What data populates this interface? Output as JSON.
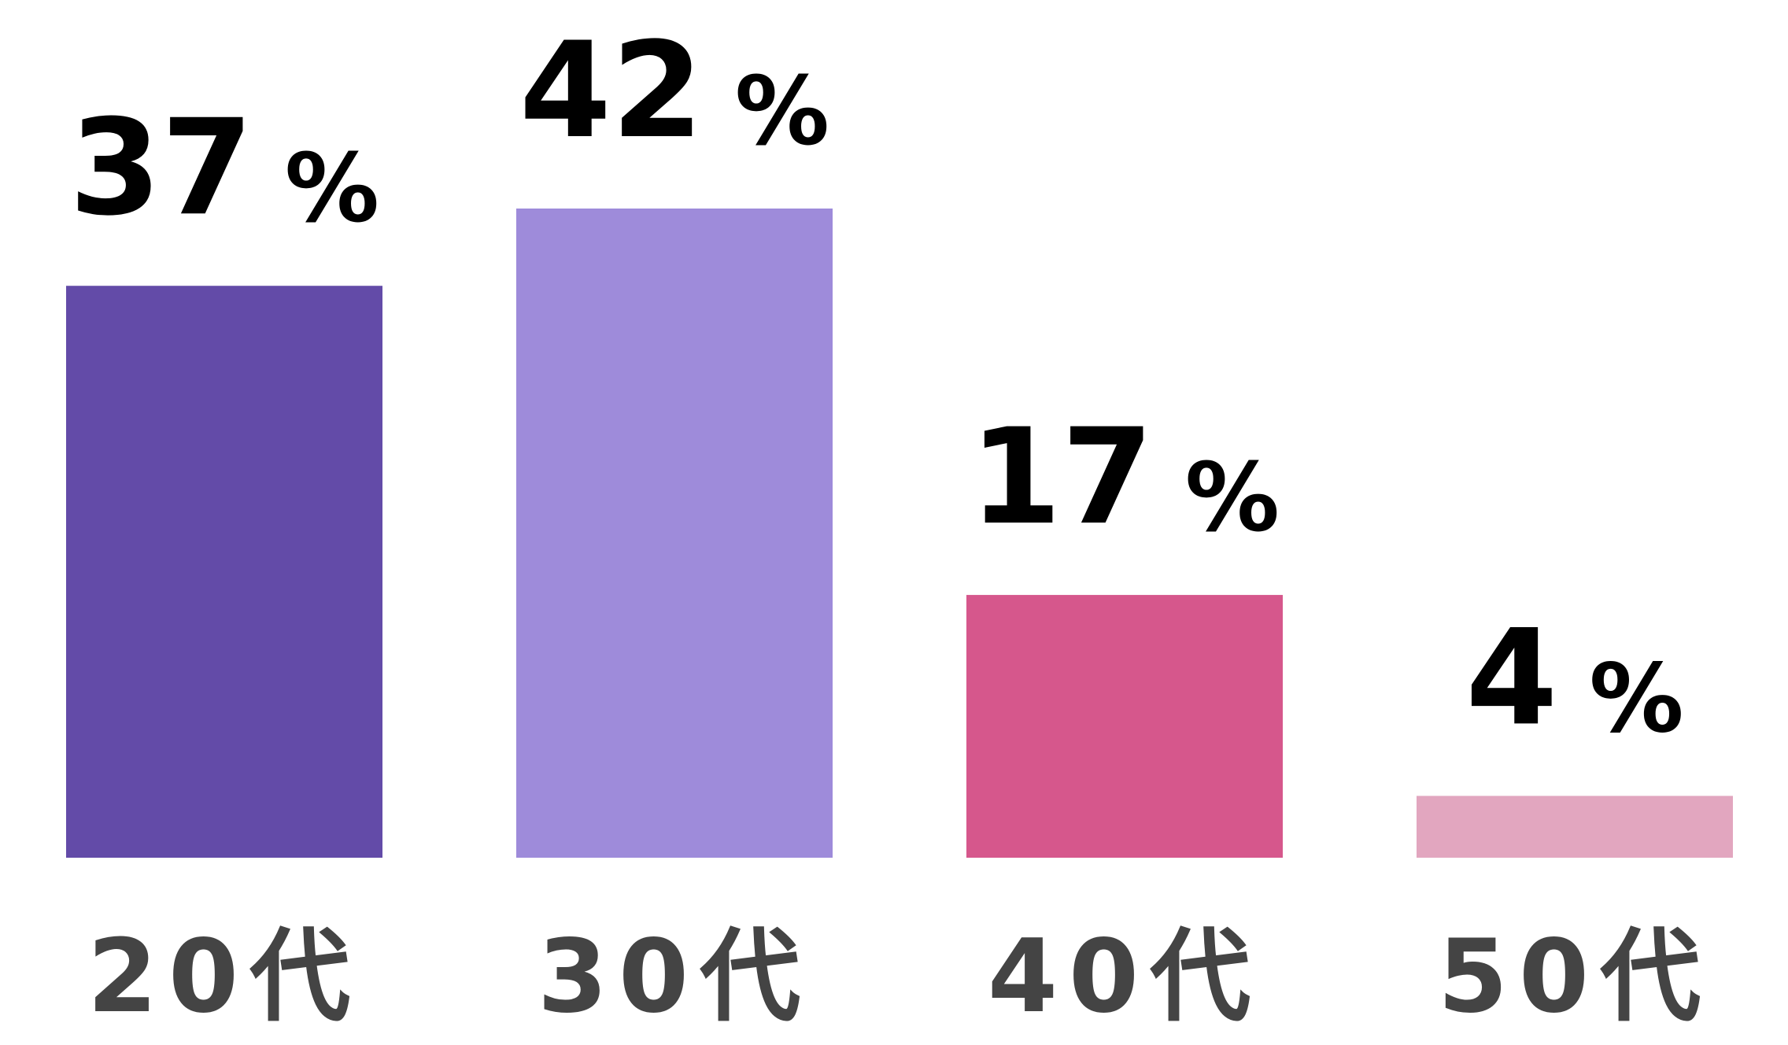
{
  "chart_data": {
    "type": "bar",
    "title": "",
    "xlabel": "",
    "ylabel": "",
    "ylim": [
      0,
      42
    ],
    "grid": false,
    "categories": [
      "20代",
      "30代",
      "40代",
      "50代"
    ],
    "values": [
      37,
      42,
      17,
      4
    ],
    "value_labels": [
      "37",
      "42",
      "17",
      "4"
    ],
    "value_unit": "%",
    "colors": [
      "#634ba8",
      "#9e8bda",
      "#d6578c",
      "#e2a6bf"
    ]
  }
}
